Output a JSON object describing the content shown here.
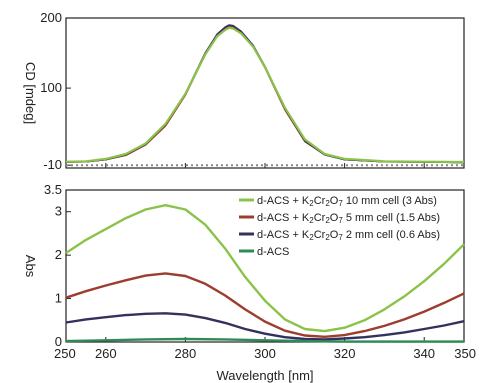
{
  "chart_data": [
    {
      "type": "line",
      "ylabel": "CD [mdeg]",
      "xlim": [
        250,
        350
      ],
      "ylim": [
        -14,
        200
      ],
      "yticks": [
        -10,
        100,
        200
      ],
      "ytick_labels": [
        "-10",
        "100",
        "200"
      ],
      "reference_line": {
        "y": -10,
        "style": "dotted"
      },
      "series": [
        {
          "color": "#1a1a1a",
          "x": [
            250,
            255,
            260,
            265,
            270,
            275,
            280,
            285,
            288,
            290,
            291,
            292,
            294,
            297,
            300,
            305,
            310,
            315,
            320,
            330,
            340,
            350
          ],
          "y": [
            -5.5,
            -5,
            -2,
            5,
            20,
            48,
            92,
            150,
            176,
            186,
            189,
            188,
            180,
            160,
            130,
            70,
            25,
            5,
            -2,
            -5,
            -5.5,
            -6
          ]
        },
        {
          "color": "#9c3d2f",
          "x": [
            250,
            255,
            260,
            265,
            270,
            275,
            280,
            285,
            288,
            290,
            291,
            292,
            294,
            297,
            300,
            305,
            310,
            315,
            320,
            330,
            340,
            350
          ],
          "y": [
            -5.5,
            -5,
            -2,
            4,
            19,
            46,
            90,
            148,
            175,
            185,
            188,
            187,
            179,
            159,
            129,
            69,
            24,
            5,
            -2,
            -5,
            -5.5,
            -6
          ]
        },
        {
          "color": "#33315e",
          "x": [
            250,
            255,
            260,
            265,
            270,
            275,
            280,
            285,
            288,
            290,
            291,
            292,
            294,
            297,
            300,
            305,
            310,
            315,
            320,
            330,
            340,
            350
          ],
          "y": [
            -5.5,
            -5,
            -2,
            5,
            20,
            48,
            92,
            150,
            177,
            187,
            190,
            189,
            181,
            161,
            131,
            71,
            25,
            5,
            -2,
            -5,
            -5.5,
            -6
          ]
        },
        {
          "color": "#8bc34a",
          "x": [
            250,
            255,
            260,
            265,
            270,
            275,
            280,
            285,
            288,
            290,
            291,
            292,
            294,
            297,
            300,
            305,
            310,
            315,
            320,
            330,
            340,
            350
          ],
          "y": [
            -5,
            -4.5,
            -1,
            6,
            21,
            49,
            92,
            148,
            174,
            183,
            186,
            185,
            178,
            159,
            130,
            72,
            27,
            6,
            -1,
            -4.5,
            -5,
            -5.5
          ]
        }
      ]
    },
    {
      "type": "line",
      "xlabel": "Wavelength [nm]",
      "ylabel": "Abs",
      "xlim": [
        250,
        350
      ],
      "ylim": [
        0,
        3.5
      ],
      "xticks": [
        250,
        260,
        280,
        300,
        320,
        340,
        350
      ],
      "xtick_labels": [
        "250",
        "260",
        "280",
        "300",
        "320",
        "340",
        "350"
      ],
      "yticks": [
        0,
        1,
        2,
        3,
        3.5
      ],
      "ytick_labels": [
        "0",
        "1",
        "2",
        "3",
        "3.5"
      ],
      "legend": {
        "position": "top-right"
      },
      "series": [
        {
          "name": "d-ACS + K2Cr2O7 10 mm cell (3 Abs)",
          "name_parts": [
            "d-ACS + K",
            "2",
            "Cr",
            "2",
            "O",
            "7",
            " 10 mm cell (3 Abs)"
          ],
          "color": "#8bc34a",
          "x": [
            250,
            255,
            260,
            265,
            270,
            275,
            280,
            285,
            290,
            295,
            300,
            305,
            310,
            315,
            320,
            325,
            330,
            335,
            340,
            345,
            350
          ],
          "y": [
            2.05,
            2.35,
            2.6,
            2.85,
            3.05,
            3.15,
            3.05,
            2.7,
            2.15,
            1.5,
            0.95,
            0.52,
            0.3,
            0.25,
            0.33,
            0.5,
            0.75,
            1.05,
            1.4,
            1.8,
            2.25
          ]
        },
        {
          "name": "d-ACS + K2Cr2O7 5 mm cell (1.5 Abs)",
          "name_parts": [
            "d-ACS + K",
            "2",
            "Cr",
            "2",
            "O",
            "7",
            " 5 mm cell (1.5 Abs)"
          ],
          "color": "#9c3d2f",
          "x": [
            250,
            255,
            260,
            265,
            270,
            275,
            280,
            285,
            290,
            295,
            300,
            305,
            310,
            315,
            320,
            325,
            330,
            335,
            340,
            345,
            350
          ],
          "y": [
            1.02,
            1.17,
            1.3,
            1.42,
            1.53,
            1.58,
            1.52,
            1.34,
            1.07,
            0.75,
            0.47,
            0.26,
            0.15,
            0.12,
            0.16,
            0.25,
            0.37,
            0.52,
            0.7,
            0.9,
            1.12
          ]
        },
        {
          "name": "d-ACS + K2Cr2O7 2 mm cell (0.6 Abs)",
          "name_parts": [
            "d-ACS + K",
            "2",
            "Cr",
            "2",
            "O",
            "7",
            " 2 mm cell (0.6 Abs)"
          ],
          "color": "#33315e",
          "x": [
            250,
            255,
            260,
            265,
            270,
            275,
            280,
            285,
            290,
            295,
            300,
            305,
            310,
            315,
            320,
            325,
            330,
            335,
            340,
            345,
            350
          ],
          "y": [
            0.45,
            0.52,
            0.57,
            0.62,
            0.65,
            0.66,
            0.63,
            0.55,
            0.44,
            0.3,
            0.19,
            0.11,
            0.07,
            0.06,
            0.08,
            0.11,
            0.16,
            0.22,
            0.3,
            0.38,
            0.48
          ]
        },
        {
          "name": "d-ACS",
          "name_parts": [
            "d-ACS"
          ],
          "color": "#2e8b57",
          "x": [
            250,
            260,
            270,
            280,
            290,
            300,
            310,
            320,
            330,
            340,
            350
          ],
          "y": [
            0.02,
            0.04,
            0.06,
            0.07,
            0.06,
            0.04,
            0.02,
            0.01,
            0.01,
            0.01,
            0.01
          ]
        }
      ]
    }
  ]
}
